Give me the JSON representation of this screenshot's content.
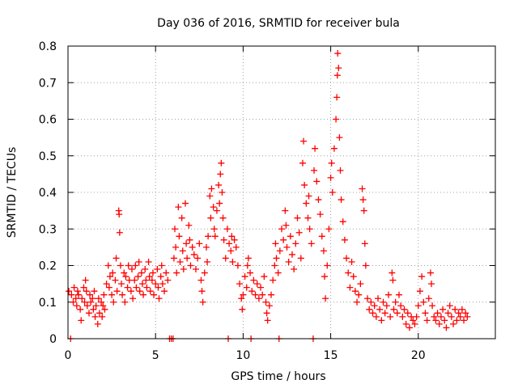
{
  "chart_data": {
    "type": "scatter",
    "title": "Day 036 of 2016, SRMTID for receiver bula",
    "xlabel": "GPS time / hours",
    "ylabel": "SRMTID / TECUs",
    "xlim": [
      0,
      24.4
    ],
    "ylim": [
      0,
      0.8
    ],
    "xticks": [
      "0",
      "5",
      "10",
      "15",
      "20"
    ],
    "yticks": [
      "0",
      "0.1",
      "0.2",
      "0.3",
      "0.4",
      "0.5",
      "0.6",
      "0.7",
      "0.8"
    ],
    "grid": true,
    "marker": "+",
    "color": "#ff0000",
    "series": [
      {
        "name": "bula",
        "points": [
          [
            0.05,
            0.13
          ],
          [
            0.15,
            0.0
          ],
          [
            0.2,
            0.12
          ],
          [
            0.3,
            0.1
          ],
          [
            0.35,
            0.14
          ],
          [
            0.45,
            0.11
          ],
          [
            0.5,
            0.09
          ],
          [
            0.55,
            0.13
          ],
          [
            0.6,
            0.12
          ],
          [
            0.7,
            0.08
          ],
          [
            0.75,
            0.05
          ],
          [
            0.8,
            0.11
          ],
          [
            0.9,
            0.14
          ],
          [
            0.95,
            0.1
          ],
          [
            1.0,
            0.16
          ],
          [
            1.05,
            0.13
          ],
          [
            1.1,
            0.09
          ],
          [
            1.2,
            0.07
          ],
          [
            1.25,
            0.12
          ],
          [
            1.3,
            0.1
          ],
          [
            1.4,
            0.11
          ],
          [
            1.45,
            0.08
          ],
          [
            1.5,
            0.13
          ],
          [
            1.55,
            0.06
          ],
          [
            1.6,
            0.09
          ],
          [
            1.7,
            0.04
          ],
          [
            1.75,
            0.11
          ],
          [
            1.8,
            0.07
          ],
          [
            1.9,
            0.1
          ],
          [
            1.95,
            0.06
          ],
          [
            2.0,
            0.09
          ],
          [
            2.05,
            0.12
          ],
          [
            2.1,
            0.08
          ],
          [
            2.2,
            0.15
          ],
          [
            2.3,
            0.2
          ],
          [
            2.35,
            0.14
          ],
          [
            2.4,
            0.17
          ],
          [
            2.5,
            0.12
          ],
          [
            2.55,
            0.18
          ],
          [
            2.6,
            0.1
          ],
          [
            2.7,
            0.16
          ],
          [
            2.75,
            0.22
          ],
          [
            2.8,
            0.13
          ],
          [
            2.9,
            0.35
          ],
          [
            2.92,
            0.34
          ],
          [
            2.95,
            0.29
          ],
          [
            3.0,
            0.2
          ],
          [
            3.05,
            0.15
          ],
          [
            3.1,
            0.12
          ],
          [
            3.2,
            0.18
          ],
          [
            3.25,
            0.1
          ],
          [
            3.3,
            0.17
          ],
          [
            3.4,
            0.14
          ],
          [
            3.45,
            0.2
          ],
          [
            3.5,
            0.16
          ],
          [
            3.6,
            0.13
          ],
          [
            3.65,
            0.19
          ],
          [
            3.7,
            0.11
          ],
          [
            3.8,
            0.16
          ],
          [
            3.85,
            0.2
          ],
          [
            3.9,
            0.14
          ],
          [
            4.0,
            0.17
          ],
          [
            4.05,
            0.21
          ],
          [
            4.1,
            0.13
          ],
          [
            4.2,
            0.18
          ],
          [
            4.25,
            0.15
          ],
          [
            4.3,
            0.12
          ],
          [
            4.4,
            0.19
          ],
          [
            4.45,
            0.16
          ],
          [
            4.5,
            0.14
          ],
          [
            4.6,
            0.21
          ],
          [
            4.65,
            0.17
          ],
          [
            4.7,
            0.13
          ],
          [
            4.8,
            0.16
          ],
          [
            4.85,
            0.18
          ],
          [
            4.9,
            0.12
          ],
          [
            5.0,
            0.15
          ],
          [
            5.1,
            0.19
          ],
          [
            5.15,
            0.14
          ],
          [
            5.2,
            0.11
          ],
          [
            5.3,
            0.17
          ],
          [
            5.35,
            0.2
          ],
          [
            5.4,
            0.15
          ],
          [
            5.5,
            0.13
          ],
          [
            5.6,
            0.18
          ],
          [
            5.7,
            0.16
          ],
          [
            5.8,
            0.0
          ],
          [
            5.9,
            0.0
          ],
          [
            6.0,
            0.0
          ],
          [
            6.05,
            0.22
          ],
          [
            6.1,
            0.3
          ],
          [
            6.15,
            0.25
          ],
          [
            6.2,
            0.18
          ],
          [
            6.3,
            0.36
          ],
          [
            6.35,
            0.28
          ],
          [
            6.4,
            0.21
          ],
          [
            6.5,
            0.33
          ],
          [
            6.55,
            0.24
          ],
          [
            6.6,
            0.19
          ],
          [
            6.7,
            0.37
          ],
          [
            6.75,
            0.26
          ],
          [
            6.8,
            0.22
          ],
          [
            6.9,
            0.31
          ],
          [
            6.95,
            0.27
          ],
          [
            7.0,
            0.2
          ],
          [
            7.1,
            0.25
          ],
          [
            7.2,
            0.23
          ],
          [
            7.3,
            0.19
          ],
          [
            7.4,
            0.22
          ],
          [
            7.5,
            0.26
          ],
          [
            7.6,
            0.16
          ],
          [
            7.65,
            0.13
          ],
          [
            7.7,
            0.1
          ],
          [
            7.8,
            0.18
          ],
          [
            7.9,
            0.25
          ],
          [
            7.95,
            0.21
          ],
          [
            8.0,
            0.28
          ],
          [
            8.1,
            0.39
          ],
          [
            8.15,
            0.33
          ],
          [
            8.2,
            0.41
          ],
          [
            8.3,
            0.36
          ],
          [
            8.35,
            0.3
          ],
          [
            8.4,
            0.28
          ],
          [
            8.5,
            0.35
          ],
          [
            8.6,
            0.42
          ],
          [
            8.65,
            0.37
          ],
          [
            8.7,
            0.45
          ],
          [
            8.75,
            0.48
          ],
          [
            8.8,
            0.4
          ],
          [
            8.85,
            0.33
          ],
          [
            8.9,
            0.27
          ],
          [
            9.0,
            0.22
          ],
          [
            9.1,
            0.3
          ],
          [
            9.15,
            0.0
          ],
          [
            9.2,
            0.26
          ],
          [
            9.3,
            0.24
          ],
          [
            9.35,
            0.28
          ],
          [
            9.4,
            0.21
          ],
          [
            9.5,
            0.27
          ],
          [
            9.6,
            0.25
          ],
          [
            9.7,
            0.2
          ],
          [
            9.8,
            0.15
          ],
          [
            9.9,
            0.11
          ],
          [
            9.95,
            0.08
          ],
          [
            10.0,
            0.12
          ],
          [
            10.1,
            0.17
          ],
          [
            10.2,
            0.14
          ],
          [
            10.25,
            0.2
          ],
          [
            10.3,
            0.22
          ],
          [
            10.4,
            0.18
          ],
          [
            10.45,
            0.0
          ],
          [
            10.5,
            0.13
          ],
          [
            10.6,
            0.16
          ],
          [
            10.7,
            0.12
          ],
          [
            10.8,
            0.15
          ],
          [
            10.9,
            0.11
          ],
          [
            11.0,
            0.14
          ],
          [
            11.1,
            0.12
          ],
          [
            11.2,
            0.17
          ],
          [
            11.3,
            0.1
          ],
          [
            11.35,
            0.07
          ],
          [
            11.4,
            0.05
          ],
          [
            11.5,
            0.09
          ],
          [
            11.6,
            0.12
          ],
          [
            11.7,
            0.16
          ],
          [
            11.8,
            0.2
          ],
          [
            11.85,
            0.26
          ],
          [
            11.9,
            0.22
          ],
          [
            12.0,
            0.18
          ],
          [
            12.05,
            0.0
          ],
          [
            12.1,
            0.24
          ],
          [
            12.2,
            0.3
          ],
          [
            12.3,
            0.27
          ],
          [
            12.4,
            0.35
          ],
          [
            12.45,
            0.31
          ],
          [
            12.5,
            0.25
          ],
          [
            12.6,
            0.21
          ],
          [
            12.7,
            0.28
          ],
          [
            12.8,
            0.23
          ],
          [
            12.9,
            0.19
          ],
          [
            13.0,
            0.26
          ],
          [
            13.1,
            0.33
          ],
          [
            13.2,
            0.29
          ],
          [
            13.3,
            0.22
          ],
          [
            13.4,
            0.48
          ],
          [
            13.45,
            0.54
          ],
          [
            13.5,
            0.42
          ],
          [
            13.6,
            0.37
          ],
          [
            13.7,
            0.33
          ],
          [
            13.75,
            0.39
          ],
          [
            13.8,
            0.3
          ],
          [
            13.9,
            0.26
          ],
          [
            14.0,
            0.0
          ],
          [
            14.05,
            0.46
          ],
          [
            14.1,
            0.52
          ],
          [
            14.2,
            0.43
          ],
          [
            14.3,
            0.38
          ],
          [
            14.4,
            0.34
          ],
          [
            14.5,
            0.28
          ],
          [
            14.6,
            0.24
          ],
          [
            14.65,
            0.17
          ],
          [
            14.7,
            0.11
          ],
          [
            14.8,
            0.2
          ],
          [
            14.9,
            0.3
          ],
          [
            15.0,
            0.44
          ],
          [
            15.05,
            0.48
          ],
          [
            15.1,
            0.4
          ],
          [
            15.2,
            0.52
          ],
          [
            15.3,
            0.6
          ],
          [
            15.35,
            0.66
          ],
          [
            15.38,
            0.72
          ],
          [
            15.4,
            0.78
          ],
          [
            15.45,
            0.74
          ],
          [
            15.5,
            0.55
          ],
          [
            15.55,
            0.46
          ],
          [
            15.6,
            0.38
          ],
          [
            15.7,
            0.32
          ],
          [
            15.8,
            0.27
          ],
          [
            15.9,
            0.22
          ],
          [
            16.0,
            0.18
          ],
          [
            16.1,
            0.14
          ],
          [
            16.2,
            0.21
          ],
          [
            16.3,
            0.17
          ],
          [
            16.4,
            0.13
          ],
          [
            16.5,
            0.1
          ],
          [
            16.6,
            0.12
          ],
          [
            16.7,
            0.15
          ],
          [
            16.8,
            0.41
          ],
          [
            16.85,
            0.38
          ],
          [
            16.9,
            0.35
          ],
          [
            16.95,
            0.26
          ],
          [
            17.0,
            0.2
          ],
          [
            17.1,
            0.11
          ],
          [
            17.2,
            0.08
          ],
          [
            17.3,
            0.1
          ],
          [
            17.4,
            0.07
          ],
          [
            17.5,
            0.09
          ],
          [
            17.6,
            0.06
          ],
          [
            17.7,
            0.11
          ],
          [
            17.8,
            0.08
          ],
          [
            17.9,
            0.05
          ],
          [
            18.0,
            0.1
          ],
          [
            18.1,
            0.07
          ],
          [
            18.2,
            0.09
          ],
          [
            18.3,
            0.12
          ],
          [
            18.4,
            0.06
          ],
          [
            18.5,
            0.18
          ],
          [
            18.55,
            0.16
          ],
          [
            18.6,
            0.08
          ],
          [
            18.7,
            0.1
          ],
          [
            18.8,
            0.07
          ],
          [
            18.9,
            0.12
          ],
          [
            19.0,
            0.09
          ],
          [
            19.1,
            0.06
          ],
          [
            19.2,
            0.08
          ],
          [
            19.3,
            0.04
          ],
          [
            19.4,
            0.07
          ],
          [
            19.5,
            0.03
          ],
          [
            19.6,
            0.06
          ],
          [
            19.7,
            0.05
          ],
          [
            19.8,
            0.04
          ],
          [
            19.9,
            0.06
          ],
          [
            20.0,
            0.09
          ],
          [
            20.1,
            0.13
          ],
          [
            20.2,
            0.17
          ],
          [
            20.3,
            0.1
          ],
          [
            20.4,
            0.07
          ],
          [
            20.5,
            0.05
          ],
          [
            20.6,
            0.11
          ],
          [
            20.7,
            0.18
          ],
          [
            20.75,
            0.15
          ],
          [
            20.8,
            0.09
          ],
          [
            20.9,
            0.06
          ],
          [
            21.0,
            0.05
          ],
          [
            21.1,
            0.07
          ],
          [
            21.2,
            0.04
          ],
          [
            21.3,
            0.06
          ],
          [
            21.4,
            0.08
          ],
          [
            21.5,
            0.05
          ],
          [
            21.6,
            0.03
          ],
          [
            21.7,
            0.07
          ],
          [
            21.8,
            0.09
          ],
          [
            21.9,
            0.06
          ],
          [
            22.0,
            0.04
          ],
          [
            22.1,
            0.08
          ],
          [
            22.2,
            0.05
          ],
          [
            22.3,
            0.07
          ],
          [
            22.4,
            0.06
          ],
          [
            22.5,
            0.08
          ],
          [
            22.6,
            0.05
          ],
          [
            22.7,
            0.07
          ],
          [
            22.8,
            0.06
          ]
        ]
      }
    ]
  }
}
